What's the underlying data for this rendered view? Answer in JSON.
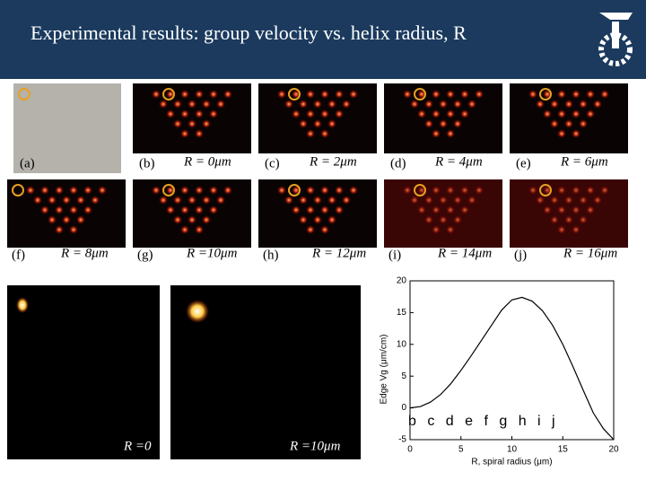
{
  "header": {
    "title": "Experimental results: group velocity vs. helix radius, R"
  },
  "panels": [
    {
      "label": "(a)"
    },
    {
      "label": "(b)",
      "radius": "R = 0μm"
    },
    {
      "label": "(c)",
      "radius": "R = 2μm"
    },
    {
      "label": "(d)",
      "radius": "R = 4μm"
    },
    {
      "label": "(e)",
      "radius": "R = 6μm"
    },
    {
      "label": "(f)",
      "radius": "R = 8μm"
    },
    {
      "label": "(g)",
      "radius": "R =10μm"
    },
    {
      "label": "(h)",
      "radius": "R = 12μm"
    },
    {
      "label": "(i)",
      "radius": "R = 14μm"
    },
    {
      "label": "(j)",
      "radius": "R = 16μm"
    }
  ],
  "bottom": {
    "labels": [
      "R =0",
      "R =10μm"
    ]
  },
  "chart_data": {
    "type": "line",
    "x_label": "R, spiral radius (μm)",
    "y_label": "Edge  Vg (μm/cm)",
    "annotation": "b c d e f g h i j",
    "x": [
      0,
      1,
      2,
      3,
      4,
      5,
      6,
      7,
      8,
      9,
      10,
      11,
      12,
      13,
      14,
      15,
      16,
      17,
      18,
      19,
      20
    ],
    "values": [
      0,
      0.2,
      0.9,
      2.1,
      3.8,
      5.9,
      8.2,
      10.6,
      13,
      15.4,
      17,
      17.4,
      16.8,
      15.3,
      13,
      10,
      6.5,
      2.8,
      -0.8,
      -3.3,
      -5
    ],
    "color": "#000000",
    "xlim": [
      0,
      20
    ],
    "ylim": [
      -5,
      20
    ],
    "xticks": [
      0,
      5,
      10,
      15,
      20
    ],
    "yticks": [
      -5,
      0,
      5,
      10,
      15,
      20
    ]
  }
}
